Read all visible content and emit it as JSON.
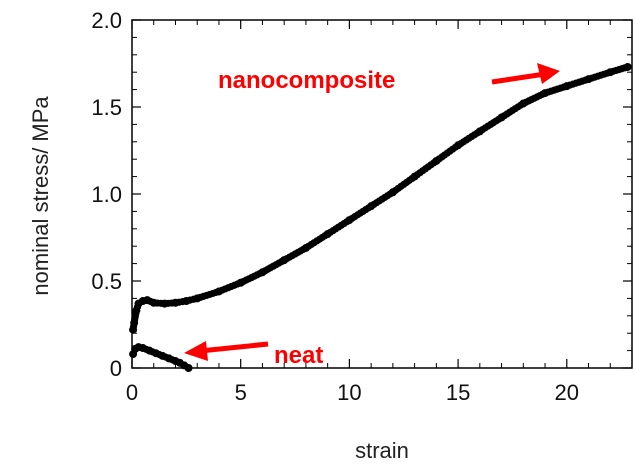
{
  "chart_data": {
    "type": "scatter",
    "title": "",
    "xlabel": "strain",
    "ylabel": "nominal stress/ MPa",
    "xlim": [
      0,
      23
    ],
    "ylim": [
      0,
      2.0
    ],
    "x_ticks": [
      0,
      5,
      10,
      15,
      20
    ],
    "x_tick_labels": [
      "0",
      "5",
      "10",
      "15",
      "20"
    ],
    "y_ticks": [
      0,
      0.5,
      1.0,
      1.5,
      2.0
    ],
    "y_tick_labels": [
      "0",
      "0.5",
      "1.0",
      "1.5",
      "2.0"
    ],
    "grid": false,
    "colors": {
      "marker": "#000000",
      "annotation": "#ff0000",
      "axis": "#000000"
    },
    "series": [
      {
        "name": "nanocomposite",
        "x": [
          0.05,
          0.1,
          0.2,
          0.3,
          0.5,
          0.7,
          1.0,
          1.5,
          2.0,
          2.5,
          3.0,
          4.0,
          5.0,
          6.0,
          7.0,
          8.0,
          9.0,
          10.0,
          11.0,
          12.0,
          13.0,
          14.0,
          15.0,
          16.0,
          17.0,
          18.0,
          19.0,
          20.0,
          21.0,
          22.0,
          22.8
        ],
        "y": [
          0.22,
          0.26,
          0.33,
          0.37,
          0.385,
          0.39,
          0.375,
          0.37,
          0.375,
          0.385,
          0.4,
          0.44,
          0.49,
          0.55,
          0.62,
          0.69,
          0.77,
          0.85,
          0.93,
          1.01,
          1.1,
          1.19,
          1.28,
          1.36,
          1.44,
          1.52,
          1.58,
          1.62,
          1.66,
          1.7,
          1.73
        ]
      },
      {
        "name": "neat",
        "x": [
          0.05,
          0.15,
          0.3,
          0.5,
          0.8,
          1.1,
          1.4,
          1.7,
          2.0,
          2.2,
          2.4,
          2.6
        ],
        "y": [
          0.08,
          0.11,
          0.12,
          0.115,
          0.1,
          0.085,
          0.07,
          0.055,
          0.04,
          0.03,
          0.015,
          0.0
        ]
      }
    ],
    "annotations": [
      {
        "text": "nanocomposite",
        "color": "#ff0000"
      },
      {
        "text": "neat",
        "color": "#ff0000"
      }
    ]
  }
}
